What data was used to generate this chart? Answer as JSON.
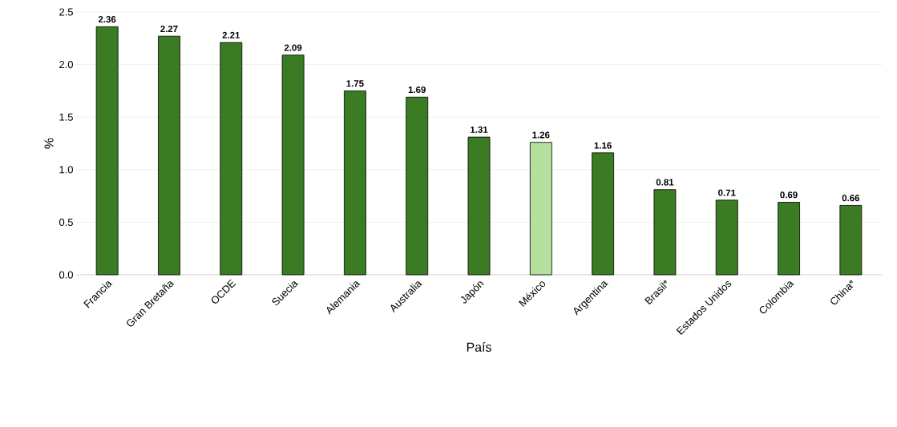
{
  "chart_data": {
    "type": "bar",
    "xlabel": "País",
    "ylabel": "%",
    "categories": [
      "Francia",
      "Gran Bretaña",
      "OCDE",
      "Suecia",
      "Alemania",
      "Australia",
      "Japón",
      "México",
      "Argentina",
      "Brasil*",
      "Estados Unidos",
      "Colombia",
      "China*"
    ],
    "values": [
      2.36,
      2.27,
      2.21,
      2.09,
      1.75,
      1.69,
      1.31,
      1.26,
      1.16,
      0.81,
      0.71,
      0.69,
      0.66
    ],
    "colors": [
      "#3b7b23",
      "#3b7b23",
      "#3b7b23",
      "#3b7b23",
      "#3b7b23",
      "#3b7b23",
      "#3b7b23",
      "#b4df9c",
      "#3b7b23",
      "#3b7b23",
      "#3b7b23",
      "#3b7b23",
      "#3b7b23"
    ],
    "ylim": [
      0,
      2.5
    ],
    "yticks": [
      {
        "value": 0,
        "label": "0.0"
      },
      {
        "value": 0.5,
        "label": "0.5"
      },
      {
        "value": 1,
        "label": "1.0"
      },
      {
        "value": 1.5,
        "label": "1.5"
      },
      {
        "value": 2,
        "label": "2.0"
      },
      2.5
    ],
    "grid": "y",
    "data_labels": true
  }
}
